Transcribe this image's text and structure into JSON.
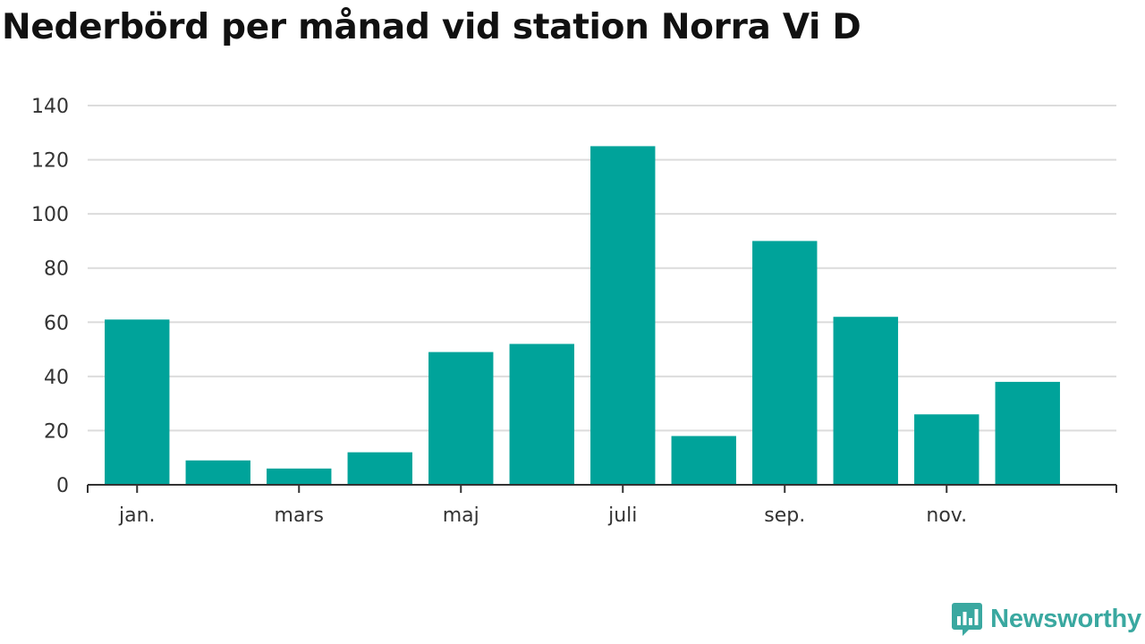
{
  "title": "Nederbörd per månad vid station Norra Vi D",
  "brand": {
    "name": "Newsworthy",
    "icon": "newsworthy-logo-icon",
    "color": "#3aa8a0"
  },
  "chart_data": {
    "type": "bar",
    "title": "Nederbörd per månad vid station Norra Vi D",
    "categories": [
      "jan.",
      "feb.",
      "mars",
      "apr.",
      "maj",
      "juni",
      "juli",
      "aug.",
      "sep.",
      "okt.",
      "nov.",
      "dec."
    ],
    "tick_labels": [
      "jan.",
      "",
      "mars",
      "",
      "maj",
      "",
      "juli",
      "",
      "sep.",
      "",
      "nov.",
      ""
    ],
    "values": [
      61,
      9,
      6,
      12,
      49,
      52,
      125,
      18,
      90,
      62,
      26,
      38
    ],
    "yticks": [
      0,
      20,
      40,
      60,
      80,
      100,
      120,
      140
    ],
    "ylim": [
      0,
      140
    ],
    "xlabel": "",
    "ylabel": "",
    "grid": true,
    "legend": "none",
    "bar_color": "#00a39a"
  }
}
